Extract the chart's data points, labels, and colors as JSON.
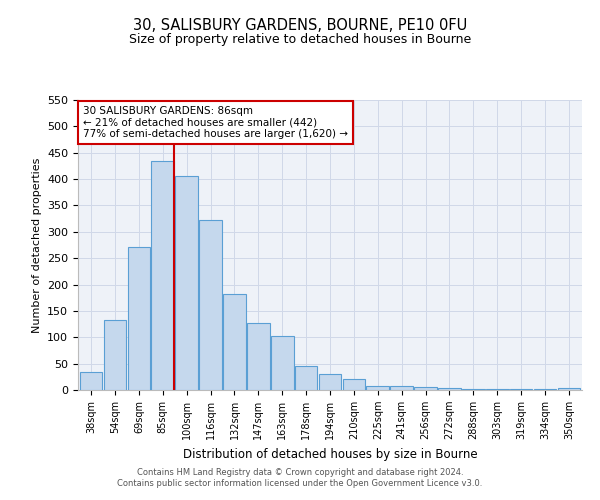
{
  "title": "30, SALISBURY GARDENS, BOURNE, PE10 0FU",
  "subtitle": "Size of property relative to detached houses in Bourne",
  "xlabel": "Distribution of detached houses by size in Bourne",
  "ylabel": "Number of detached properties",
  "bar_labels": [
    "38sqm",
    "54sqm",
    "69sqm",
    "85sqm",
    "100sqm",
    "116sqm",
    "132sqm",
    "147sqm",
    "163sqm",
    "178sqm",
    "194sqm",
    "210sqm",
    "225sqm",
    "241sqm",
    "256sqm",
    "272sqm",
    "288sqm",
    "303sqm",
    "319sqm",
    "334sqm",
    "350sqm"
  ],
  "bar_values": [
    35,
    133,
    272,
    435,
    405,
    322,
    183,
    127,
    103,
    45,
    30,
    20,
    7,
    7,
    6,
    3,
    2,
    2,
    2,
    2,
    4
  ],
  "bar_color": "#c5d8ed",
  "bar_edge_color": "#5a9fd4",
  "vline_index": 3,
  "vline_color": "#cc0000",
  "ylim": [
    0,
    550
  ],
  "yticks": [
    0,
    50,
    100,
    150,
    200,
    250,
    300,
    350,
    400,
    450,
    500,
    550
  ],
  "annotation_title": "30 SALISBURY GARDENS: 86sqm",
  "annotation_line1": "← 21% of detached houses are smaller (442)",
  "annotation_line2": "77% of semi-detached houses are larger (1,620) →",
  "annotation_box_color": "#cc0000",
  "grid_color": "#d0d8e8",
  "bg_color": "#eef2f8",
  "footer1": "Contains HM Land Registry data © Crown copyright and database right 2024.",
  "footer2": "Contains public sector information licensed under the Open Government Licence v3.0."
}
